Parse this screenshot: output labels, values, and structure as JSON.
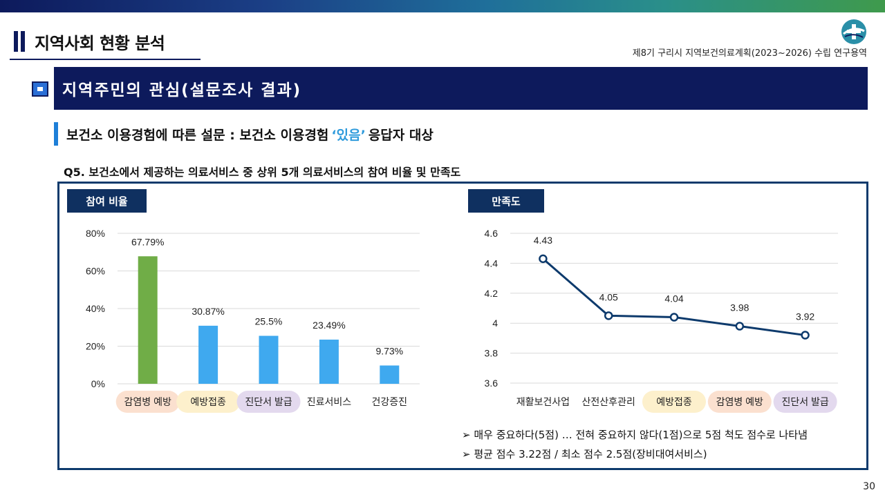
{
  "header": {
    "title": "지역사회 현황 분석",
    "report_name": "제8기 구리시 지역보건의료계획(2023~2026) 수립 연구용역"
  },
  "section": {
    "title": "지역주민의 관심(설문조사 결과)"
  },
  "subhead": {
    "prefix": "보건소 이용경험에 따른 설문 : 보건소 이용경험",
    "highlight": "‘있음’",
    "suffix": "응답자 대상"
  },
  "question": "Q5. 보건소에서 제공하는 의료서비스 중 상위 5개 의료서비스의 참여 비율 및 만족도",
  "panels": {
    "left_tag": "참여 비율",
    "right_tag": "만족도"
  },
  "notes": [
    "➢ 매우 중요하다(5점) … 전혀 중요하지 않다(1점)으로 5점 척도 점수로 나타냄",
    "➢ 평균 점수 3.22점  /  최소 점수 2.5점(장비대여서비스)"
  ],
  "page_number": "30",
  "colors": {
    "navy": "#0d1a5c",
    "bar_green": "#70ad47",
    "bar_blue": "#3fa9ef",
    "line": "#0d3a6c",
    "tag_peach": "#fbe0cf",
    "tag_yellow": "#fdf0cc",
    "tag_purple": "#e3d9ee"
  },
  "chart_data": [
    {
      "type": "bar",
      "title": "참여 비율",
      "categories": [
        "감염병 예방",
        "예방접종",
        "진단서 발급",
        "진료서비스",
        "건강증진"
      ],
      "values": [
        67.79,
        30.87,
        25.5,
        23.49,
        9.73
      ],
      "data_labels": [
        "67.79%",
        "30.87%",
        "25.5%",
        "23.49%",
        "9.73%"
      ],
      "ylim": [
        0,
        80
      ],
      "yticks": [
        "0%",
        "20%",
        "40%",
        "60%",
        "80%"
      ],
      "highlight_color": [
        "#70ad47",
        "#3fa9ef",
        "#3fa9ef",
        "#3fa9ef",
        "#3fa9ef"
      ],
      "category_tags": [
        "#fbe0cf",
        "#fdf0cc",
        "#e3d9ee",
        "",
        ""
      ],
      "grid": true
    },
    {
      "type": "line",
      "title": "만족도",
      "categories": [
        "재활보건사업",
        "산전산후관리",
        "예방접종",
        "감염병 예방",
        "진단서 발급"
      ],
      "values": [
        4.43,
        4.05,
        4.04,
        3.98,
        3.92
      ],
      "data_labels": [
        "4.43",
        "4.05",
        "4.04",
        "3.98",
        "3.92"
      ],
      "ylim": [
        3.6,
        4.6
      ],
      "yticks": [
        "3.6",
        "3.8",
        "4",
        "4.2",
        "4.4",
        "4.6"
      ],
      "category_tags": [
        "",
        "",
        "#fdf0cc",
        "#fbe0cf",
        "#e3d9ee"
      ],
      "grid": true
    }
  ]
}
